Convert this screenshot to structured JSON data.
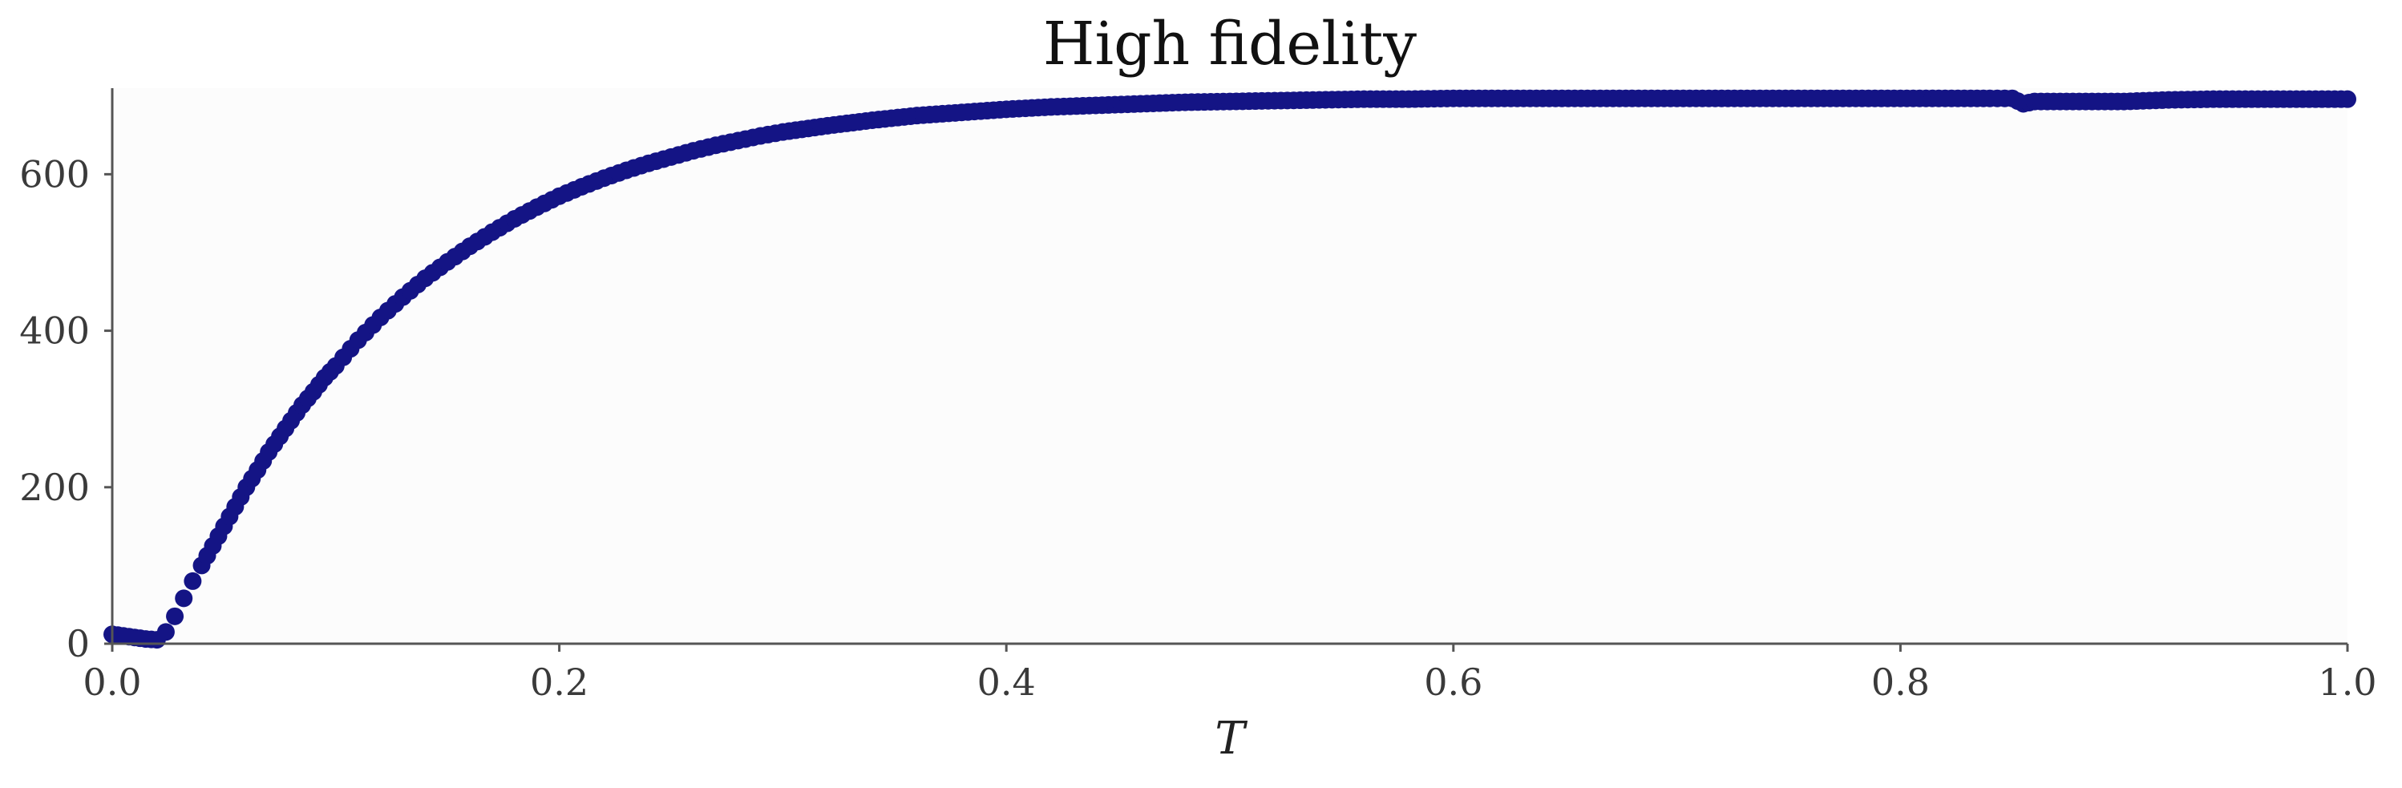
{
  "chart_data": {
    "type": "scatter",
    "title": "High fidelity",
    "xlabel": "T",
    "ylabel": "",
    "xlim": [
      0.0,
      1.0
    ],
    "ylim": [
      0,
      710
    ],
    "x_ticks": [
      0.0,
      0.2,
      0.4,
      0.6,
      0.8,
      1.0
    ],
    "x_tick_labels": [
      "0.0",
      "0.2",
      "0.4",
      "0.6",
      "0.8",
      "1.0"
    ],
    "y_ticks": [
      0,
      200,
      400,
      600
    ],
    "y_tick_labels": [
      "0",
      "200",
      "400",
      "600"
    ],
    "grid": false,
    "marker_color": "#141485",
    "plot_background": "#fcfcfc",
    "axis_color": "#555555",
    "series": [
      {
        "x": [
          0.0,
          0.005,
          0.01,
          0.015,
          0.02,
          0.024,
          0.028,
          0.032,
          0.036,
          0.04,
          0.045,
          0.05,
          0.055,
          0.06,
          0.065,
          0.07,
          0.075,
          0.08,
          0.085,
          0.09,
          0.095,
          0.1,
          0.11,
          0.12,
          0.13,
          0.14,
          0.15,
          0.16,
          0.17,
          0.18,
          0.19,
          0.2,
          0.21,
          0.22,
          0.23,
          0.24,
          0.25,
          0.26,
          0.27,
          0.28,
          0.29,
          0.3,
          0.32,
          0.34,
          0.36,
          0.38,
          0.4,
          0.42,
          0.44,
          0.46,
          0.48,
          0.5,
          0.52,
          0.54,
          0.56,
          0.58,
          0.6,
          0.62,
          0.64,
          0.66,
          0.68,
          0.7,
          0.72,
          0.74,
          0.76,
          0.78,
          0.8,
          0.82,
          0.84,
          0.85,
          0.855,
          0.86,
          0.88,
          0.9,
          0.92,
          0.94,
          0.96,
          0.98,
          1.0
        ],
        "y": [
          12,
          10,
          8,
          6,
          5,
          15,
          35,
          58,
          80,
          100,
          125,
          150,
          175,
          200,
          222,
          245,
          265,
          285,
          305,
          322,
          340,
          355,
          388,
          417,
          443,
          467,
          488,
          508,
          526,
          543,
          558,
          572,
          584,
          595,
          605,
          614,
          622,
          630,
          637,
          643,
          649,
          654,
          662,
          669,
          675,
          679,
          683,
          686,
          688,
          690,
          692,
          693,
          694,
          695,
          696,
          696,
          697,
          697,
          697,
          697,
          697,
          697,
          697,
          697,
          697,
          697,
          697,
          697,
          697,
          697,
          690,
          693,
          693,
          693,
          695,
          696,
          696,
          696,
          696
        ]
      }
    ]
  }
}
